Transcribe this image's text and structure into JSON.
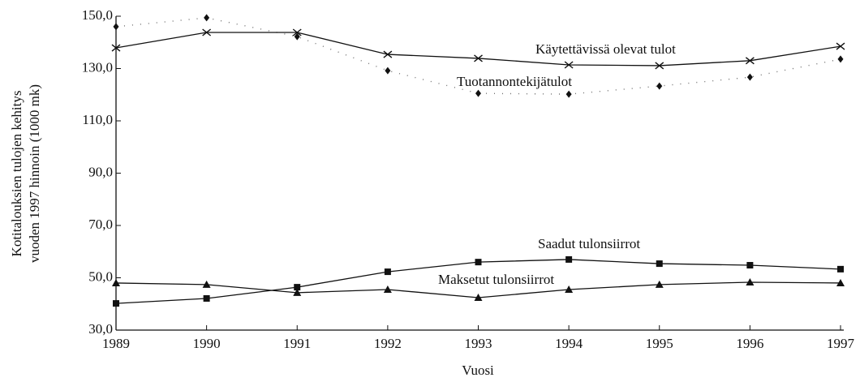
{
  "chart_data": {
    "type": "line",
    "ylabel": [
      "Kotitalouksien tulojen kehitys",
      "vuoden 1997 hinnoin (1000 mk)"
    ],
    "xlabel": "Vuosi",
    "x": [
      1989,
      1990,
      1991,
      1992,
      1993,
      1994,
      1995,
      1996,
      1997
    ],
    "xlim": [
      1989,
      1997
    ],
    "xticks": [
      1989,
      1990,
      1991,
      1992,
      1993,
      1994,
      1995,
      1996,
      1997
    ],
    "ylim": [
      30,
      150
    ],
    "yticks": [
      {
        "value": 30,
        "label": "30,0"
      },
      {
        "value": 50,
        "label": "50,0"
      },
      {
        "value": 70,
        "label": "70,0"
      },
      {
        "value": 90,
        "label": "90,0"
      },
      {
        "value": 110,
        "label": "110,0"
      },
      {
        "value": 130,
        "label": "130,0"
      },
      {
        "value": 150,
        "label": "150,0"
      }
    ],
    "grid": false,
    "series": [
      {
        "name": "Käytettävissä olevat tulot",
        "color": "#111111",
        "marker": "x",
        "linestyle": "solid",
        "values": [
          137.9,
          143.8,
          143.8,
          135.4,
          133.9,
          131.4,
          131.1,
          133.0,
          138.5
        ]
      },
      {
        "name": "Tuotannontekijätulot",
        "color": "#111111",
        "marker": "diamond",
        "linestyle": "dotted",
        "values": [
          146.0,
          149.4,
          142.2,
          129.2,
          120.5,
          120.2,
          123.3,
          126.7,
          133.6
        ]
      },
      {
        "name": "Saadut tulonsiirrot",
        "color": "#111111",
        "marker": "square",
        "linestyle": "solid",
        "values": [
          40.2,
          42.1,
          46.4,
          52.3,
          56.0,
          57.0,
          55.4,
          54.8,
          53.3
        ]
      },
      {
        "name": "Maksetut tulonsiirrot",
        "color": "#111111",
        "marker": "triangle",
        "linestyle": "solid",
        "values": [
          48.0,
          47.4,
          44.3,
          45.5,
          42.4,
          45.5,
          47.4,
          48.3,
          48.0
        ]
      }
    ]
  }
}
